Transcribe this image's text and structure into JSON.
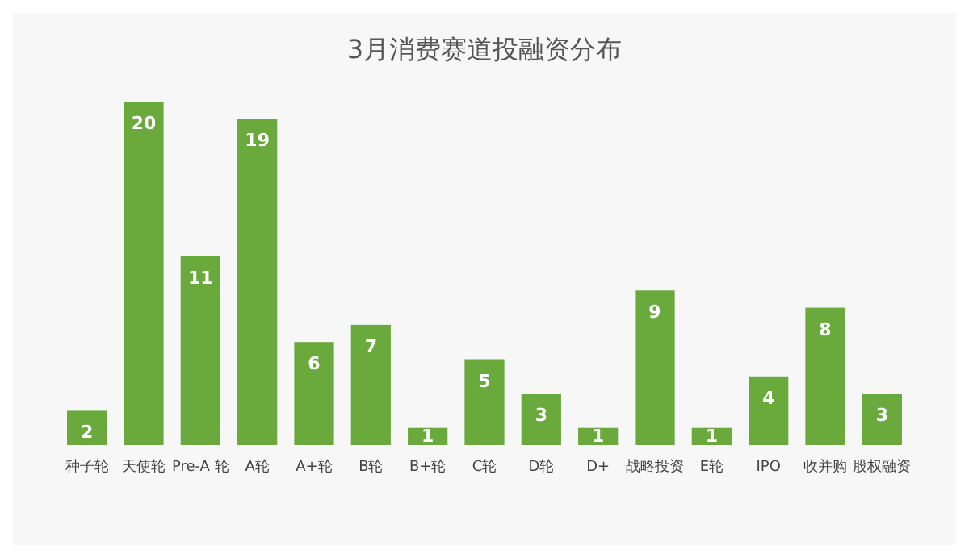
{
  "chart_data": {
    "type": "bar",
    "title": "3月消费赛道投融资分布",
    "categories": [
      "种子轮",
      "天使轮",
      "Pre-A 轮",
      "A轮",
      "A+轮",
      "B轮",
      "B+轮",
      "C轮",
      "D轮",
      "D+",
      "战略投资",
      "E轮",
      "IPO",
      "收并购",
      "股权融资"
    ],
    "values": [
      2,
      20,
      11,
      19,
      6,
      7,
      1,
      5,
      3,
      1,
      9,
      1,
      4,
      8,
      3
    ],
    "color": "#6aaa3c",
    "data_labels": true
  }
}
